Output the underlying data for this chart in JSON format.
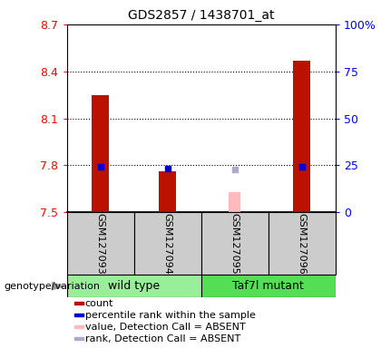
{
  "title": "GDS2857 / 1438701_at",
  "samples": [
    "GSM127093",
    "GSM127094",
    "GSM127095",
    "GSM127096"
  ],
  "left_ylim": [
    7.5,
    8.7
  ],
  "left_yticks": [
    7.5,
    7.8,
    8.1,
    8.4,
    8.7
  ],
  "right_ylim": [
    0,
    100
  ],
  "right_yticks": [
    0,
    25,
    50,
    75,
    100
  ],
  "right_yticklabels": [
    "0",
    "25",
    "50",
    "75",
    "100%"
  ],
  "red_bar_values": [
    8.25,
    7.76,
    null,
    8.47
  ],
  "blue_marker_values": [
    7.79,
    7.78,
    null,
    7.79
  ],
  "pink_bar_values": [
    null,
    null,
    7.63,
    null
  ],
  "lavender_marker_values": [
    null,
    null,
    7.775,
    null
  ],
  "bar_bottom": 7.5,
  "bar_width": 0.25,
  "pink_bar_width": 0.18,
  "red_color": "#bb1100",
  "blue_color": "#0000cc",
  "pink_color": "#ffbbbb",
  "lavender_color": "#aaaacc",
  "group_colors": [
    "#99ee99",
    "#55dd55"
  ],
  "sample_label_bg": "#cccccc",
  "genotype_label": "genotype/variation",
  "legend_items": [
    {
      "color": "#bb1100",
      "label": "count"
    },
    {
      "color": "#0000cc",
      "label": "percentile rank within the sample"
    },
    {
      "color": "#ffbbbb",
      "label": "value, Detection Call = ABSENT"
    },
    {
      "color": "#aaaacc",
      "label": "rank, Detection Call = ABSENT"
    }
  ]
}
